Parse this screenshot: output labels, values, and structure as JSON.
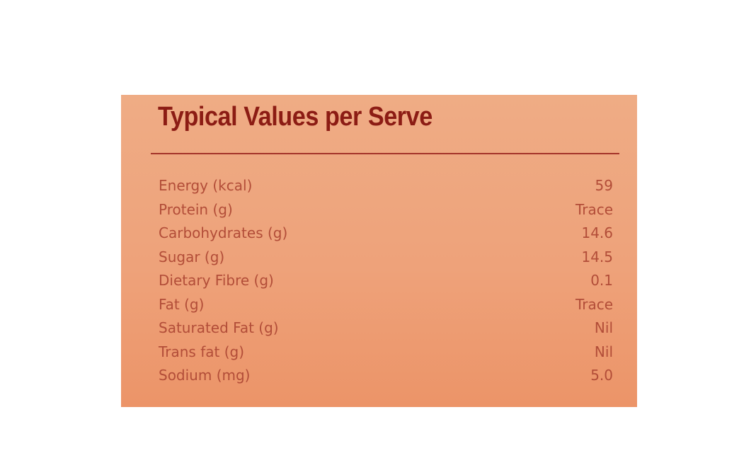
{
  "title": "Typical Values per Serve",
  "rows": [
    {
      "label": "Energy (kcal)",
      "value": "59"
    },
    {
      "label": "Protein (g)",
      "value": "Trace"
    },
    {
      "label": "Carbohydrates (g)",
      "value": "14.6"
    },
    {
      "label": "Sugar (g)",
      "value": "14.5"
    },
    {
      "label": "Dietary Fibre (g)",
      "value": "0.1"
    },
    {
      "label": "Fat (g)",
      "value": "Trace"
    },
    {
      "label": "Saturated Fat (g)",
      "value": "Nil"
    },
    {
      "label": "Trans fat (g)",
      "value": "Nil"
    },
    {
      "label": "Sodium (mg)",
      "value": "5.0"
    }
  ],
  "colors": {
    "panel": "#eea27a",
    "title": "#8c1c14",
    "rule": "#a4342a",
    "text": "#b24d38"
  }
}
